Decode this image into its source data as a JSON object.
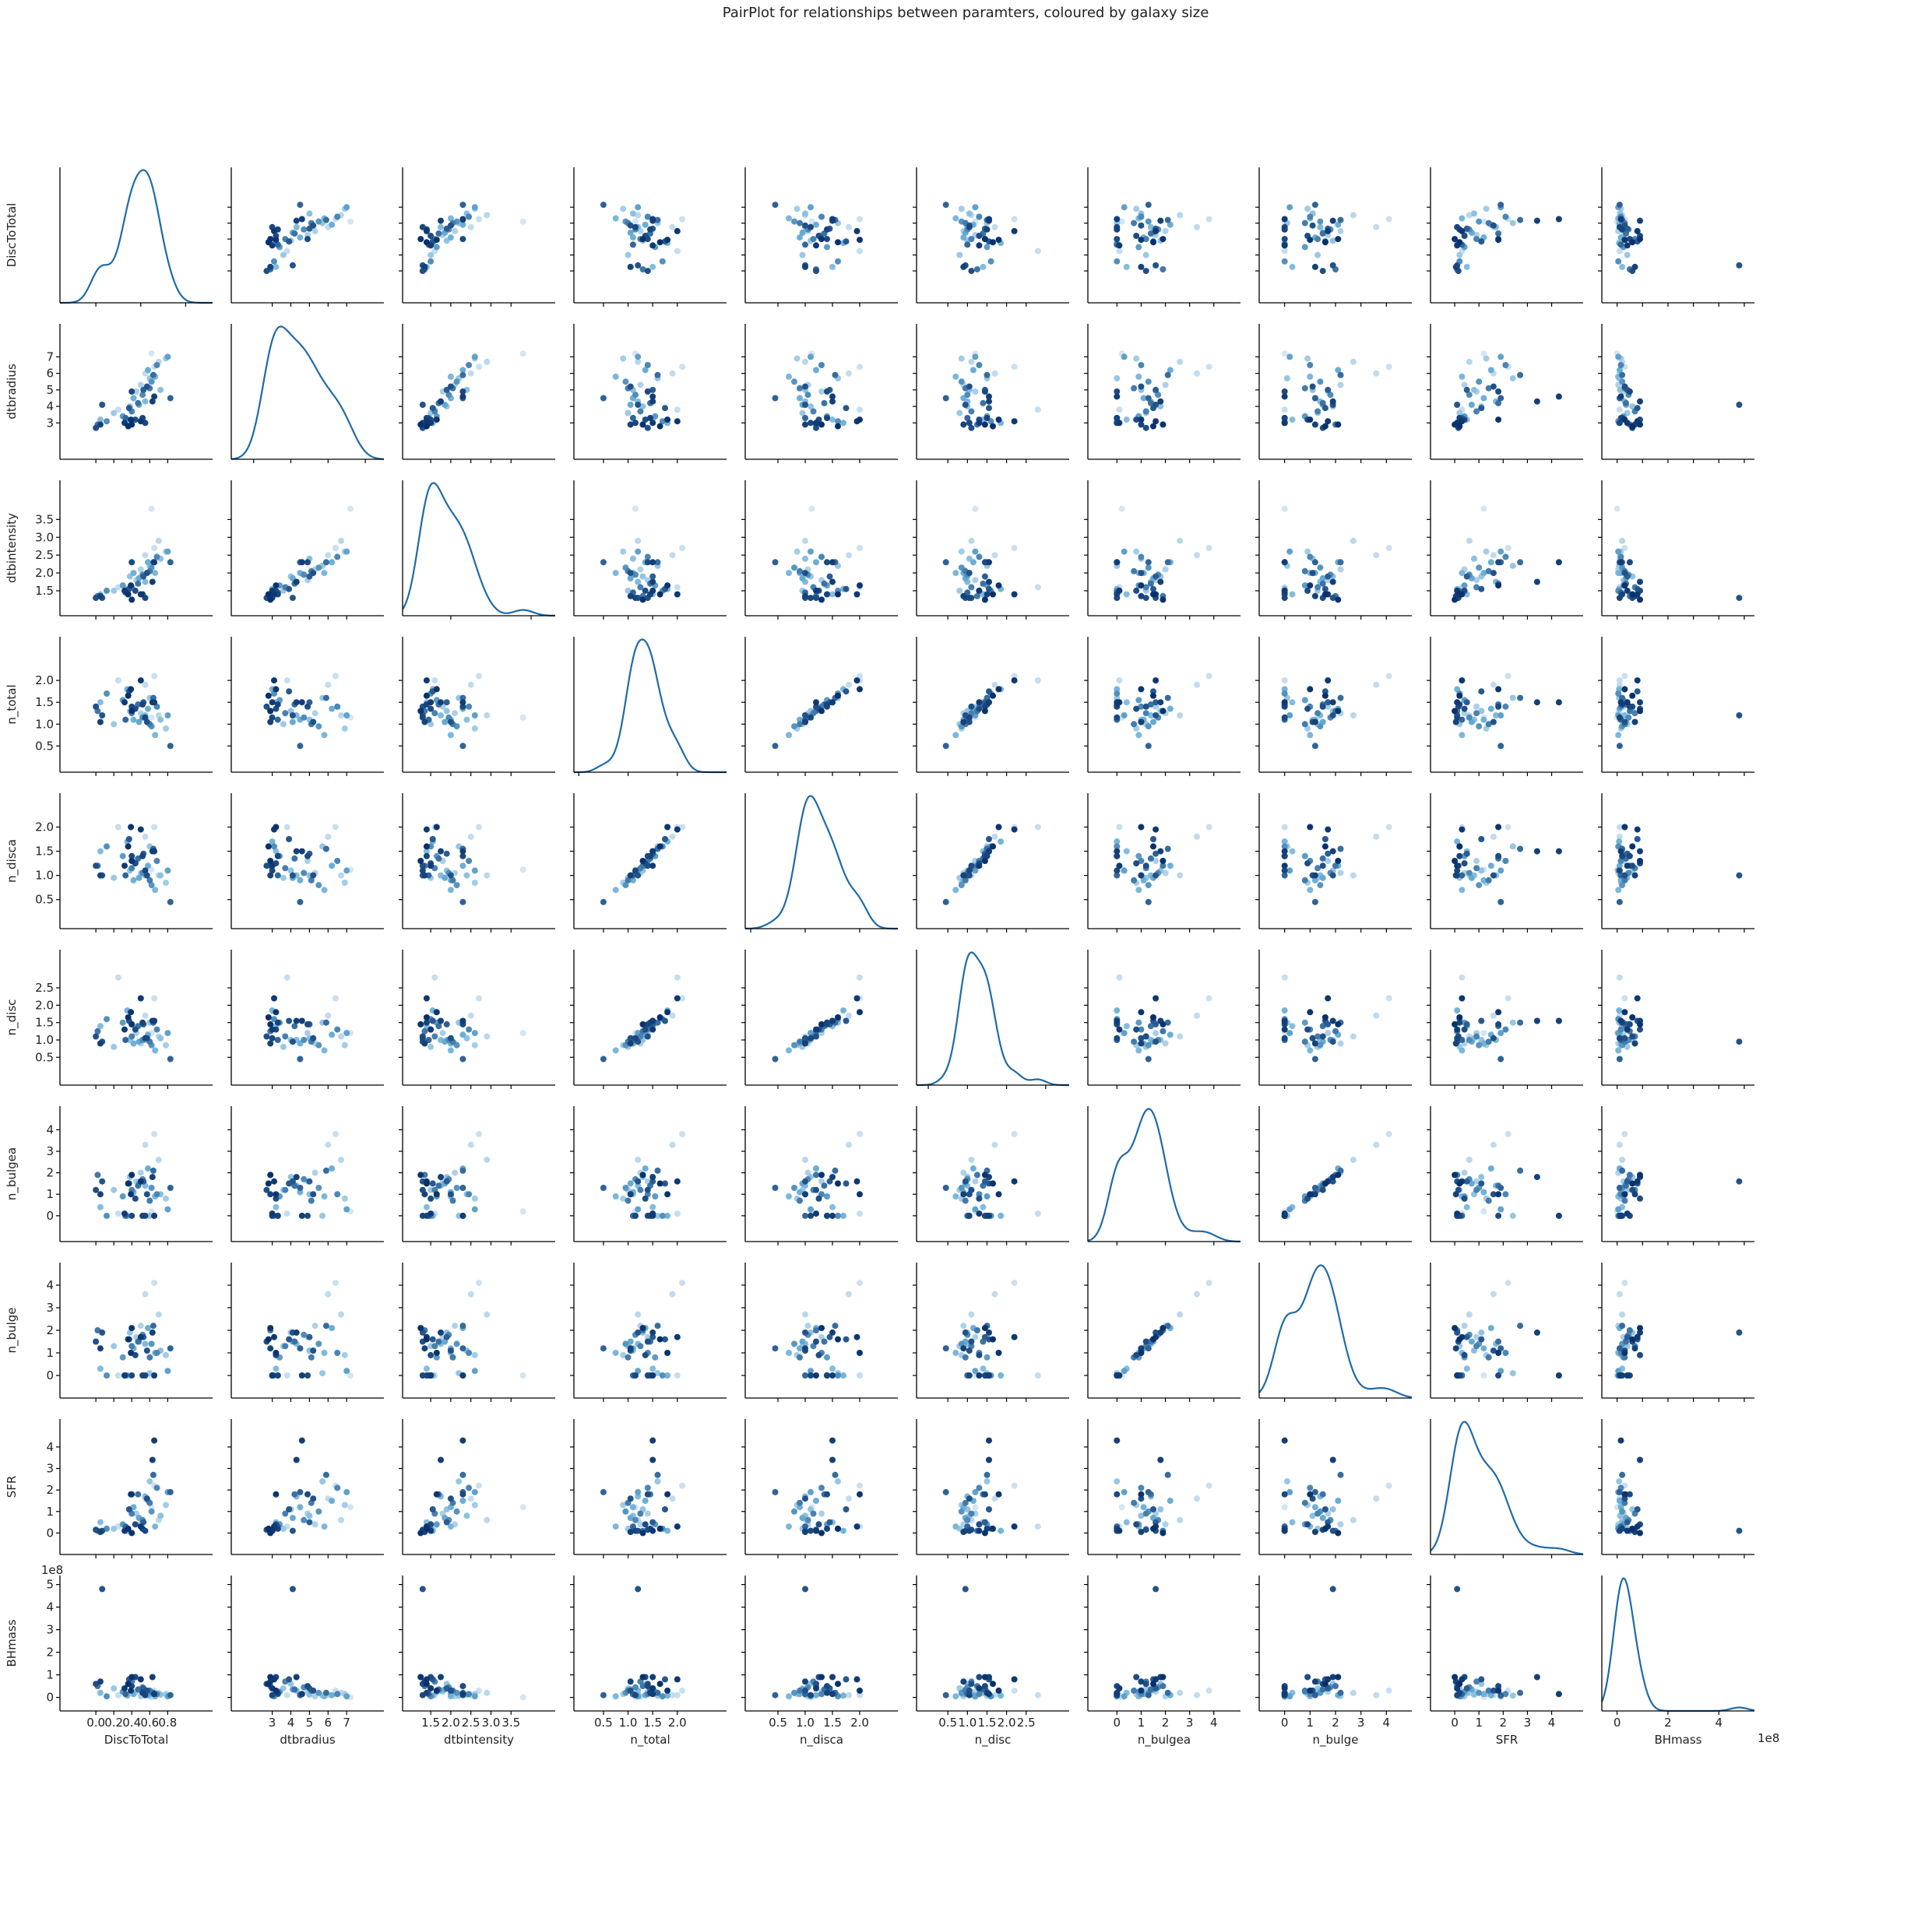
{
  "chart_data": {
    "type": "scatter",
    "title": "PairPlot for relationships between paramters, coloured by galaxy size",
    "variables": [
      "DiscToTotal",
      "dtbradius",
      "dtbintensity",
      "n_total",
      "n_disca",
      "n_disc",
      "n_bulgea",
      "n_bulge",
      "SFR",
      "BHmass"
    ],
    "axes": {
      "DiscToTotal": {
        "lim": [
          -0.4,
          1.3
        ],
        "ticks": [
          0.0,
          0.2,
          0.4,
          0.6,
          0.8
        ],
        "tick_labels": [
          "0.0",
          "0.2",
          "0.4",
          "0.6",
          "0.8"
        ],
        "diag_ticks": [
          0.0,
          0.5,
          1.0
        ],
        "diag_tick_labels": [
          "0.0",
          "0.5",
          "1.0"
        ]
      },
      "dtbradius": {
        "lim": [
          0.8,
          9.0
        ],
        "ticks": [
          3,
          4,
          5,
          6,
          7
        ],
        "tick_labels": [
          "3",
          "4",
          "5",
          "6",
          "7"
        ],
        "diag_ticks": [
          2,
          4,
          6,
          8
        ],
        "diag_tick_labels": [
          "2",
          "4",
          "6",
          "8"
        ]
      },
      "dtbintensity": {
        "lim": [
          0.8,
          4.6
        ],
        "ticks": [
          1.5,
          2.0,
          2.5,
          3.0,
          3.5
        ],
        "tick_labels": [
          "1.5",
          "2.0",
          "2.5",
          "3.0",
          "3.5"
        ],
        "diag_ticks": [
          2,
          4
        ],
        "diag_tick_labels": [
          "2",
          "4"
        ]
      },
      "n_total": {
        "lim": [
          -0.1,
          3.0
        ],
        "ticks": [
          0.5,
          1.0,
          1.5,
          2.0
        ],
        "tick_labels": [
          "0.5",
          "1.0",
          "1.5",
          "2.0"
        ],
        "diag_ticks": [
          0,
          1,
          2
        ],
        "diag_tick_labels": [
          "0",
          "1",
          "2"
        ]
      },
      "n_disca": {
        "lim": [
          -0.1,
          2.7
        ],
        "ticks": [
          0.5,
          1.0,
          1.5,
          2.0
        ],
        "tick_labels": [
          "0.5",
          "1.0",
          "1.5",
          "2.0"
        ],
        "diag_ticks": [
          0,
          1,
          2
        ],
        "diag_tick_labels": [
          "0",
          "1",
          "2"
        ]
      },
      "n_disc": {
        "lim": [
          -0.3,
          3.6
        ],
        "ticks": [
          0.5,
          1.0,
          1.5,
          2.0,
          2.5
        ],
        "tick_labels": [
          "0.5",
          "1.0",
          "1.5",
          "2.0",
          "2.5"
        ],
        "diag_ticks": [
          0,
          1,
          2,
          3
        ],
        "diag_tick_labels": [
          "0",
          "1",
          "2",
          "3"
        ]
      },
      "n_bulgea": {
        "lim": [
          -1.2,
          5.1
        ],
        "ticks": [
          0,
          1,
          2,
          3,
          4
        ],
        "tick_labels": [
          "0",
          "1",
          "2",
          "3",
          "4"
        ],
        "diag_ticks": [
          0,
          2,
          4
        ],
        "diag_tick_labels": [
          "0",
          "2",
          "4"
        ]
      },
      "n_bulge": {
        "lim": [
          -1.0,
          5.0
        ],
        "ticks": [
          0,
          1,
          2,
          3,
          4
        ],
        "tick_labels": [
          "0",
          "1",
          "2",
          "3",
          "4"
        ],
        "diag_ticks": [
          0,
          2,
          4
        ],
        "diag_tick_labels": [
          "0",
          "2",
          "4"
        ]
      },
      "SFR": {
        "lim": [
          -1.0,
          5.3
        ],
        "ticks": [
          0,
          1,
          2,
          3,
          4
        ],
        "tick_labels": [
          "0",
          "1",
          "2",
          "3",
          "4"
        ],
        "diag_ticks": [
          0,
          2,
          4
        ],
        "diag_tick_labels": [
          "0",
          "2",
          "4"
        ]
      },
      "BHmass": {
        "lim": [
          -60000000,
          540000000
        ],
        "ticks": [
          0,
          100000000,
          200000000,
          300000000,
          400000000,
          500000000
        ],
        "tick_labels": [
          "0",
          "1",
          "2",
          "3",
          "4",
          "5"
        ],
        "diag_ticks": [
          0,
          200000000,
          400000000
        ],
        "diag_tick_labels": [
          "0",
          "2",
          "4"
        ],
        "offset_label": "1e8"
      }
    },
    "galaxies": [
      {
        "DiscToTotal": 0.62,
        "dtbradius": 7.2,
        "dtbintensity": 3.8,
        "n_total": 1.15,
        "n_disca": 1.12,
        "n_disc": 1.2,
        "n_bulgea": 0.2,
        "n_bulge": 0.0,
        "SFR": 1.2,
        "BHmass": 0,
        "size": 0.03
      },
      {
        "DiscToTotal": 0.65,
        "dtbradius": 6.4,
        "dtbintensity": 2.7,
        "n_total": 2.1,
        "n_disca": 2.0,
        "n_disc": 2.2,
        "n_bulgea": 3.8,
        "n_bulge": 4.1,
        "SFR": 2.2,
        "BHmass": 30000000,
        "size": 0.08
      },
      {
        "DiscToTotal": 0.55,
        "dtbradius": 6.0,
        "dtbintensity": 2.5,
        "n_total": 1.9,
        "n_disca": 1.8,
        "n_disc": 1.7,
        "n_bulgea": 3.3,
        "n_bulge": 3.6,
        "SFR": 1.6,
        "BHmass": 10000000,
        "size": 0.12
      },
      {
        "DiscToTotal": 0.7,
        "dtbradius": 6.7,
        "dtbintensity": 2.9,
        "n_total": 1.2,
        "n_disca": 1.0,
        "n_disc": 1.1,
        "n_bulgea": 2.6,
        "n_bulge": 2.7,
        "SFR": 0.6,
        "BHmass": 20000000,
        "size": 0.15
      },
      {
        "DiscToTotal": 0.25,
        "dtbradius": 3.8,
        "dtbintensity": 1.6,
        "n_total": 2.0,
        "n_disca": 2.0,
        "n_disc": 2.8,
        "n_bulgea": 0.1,
        "n_bulge": 0.0,
        "SFR": 0.3,
        "BHmass": 10000000,
        "size": 0.1
      },
      {
        "DiscToTotal": 0.5,
        "dtbradius": 5.3,
        "dtbintensity": 2.1,
        "n_total": 1.25,
        "n_disca": 1.05,
        "n_disc": 0.9,
        "n_bulgea": 2.0,
        "n_bulge": 2.2,
        "SFR": 0.4,
        "BHmass": 5000000,
        "size": 0.2
      },
      {
        "DiscToTotal": 0.45,
        "dtbradius": 4.9,
        "dtbintensity": 1.8,
        "n_total": 1.4,
        "n_disca": 1.3,
        "n_disc": 1.2,
        "n_bulgea": 1.6,
        "n_bulge": 1.7,
        "SFR": 0.9,
        "BHmass": 25000000,
        "size": 0.22
      },
      {
        "DiscToTotal": 0.78,
        "dtbradius": 6.9,
        "dtbintensity": 2.6,
        "n_total": 0.9,
        "n_disca": 0.85,
        "n_disc": 0.85,
        "n_bulgea": 0.8,
        "n_bulge": 0.9,
        "SFR": 1.3,
        "BHmass": 15000000,
        "size": 0.25
      },
      {
        "DiscToTotal": 0.2,
        "dtbradius": 3.6,
        "dtbintensity": 1.5,
        "n_total": 1.0,
        "n_disca": 0.95,
        "n_disc": 0.8,
        "n_bulgea": 1.2,
        "n_bulge": 1.3,
        "SFR": 0.2,
        "BHmass": 40000000,
        "size": 0.28
      },
      {
        "DiscToTotal": 0.6,
        "dtbradius": 5.7,
        "dtbintensity": 2.2,
        "n_total": 1.6,
        "n_disca": 1.6,
        "n_disc": 1.5,
        "n_bulgea": 0.0,
        "n_bulge": 0.1,
        "SFR": 2.4,
        "BHmass": 8000000,
        "size": 0.3
      },
      {
        "DiscToTotal": 0.38,
        "dtbradius": 4.0,
        "dtbintensity": 1.9,
        "n_total": 1.3,
        "n_disca": 1.1,
        "n_disc": 1.0,
        "n_bulgea": 1.8,
        "n_bulge": 1.9,
        "SFR": 1.1,
        "BHmass": 60000000,
        "size": 0.32
      },
      {
        "DiscToTotal": 0.72,
        "dtbradius": 5.0,
        "dtbintensity": 2.4,
        "n_total": 1.1,
        "n_disca": 1.0,
        "n_disc": 1.05,
        "n_bulgea": 1.0,
        "n_bulge": 1.1,
        "SFR": 0.8,
        "BHmass": 12000000,
        "size": 0.35
      },
      {
        "DiscToTotal": 0.05,
        "dtbradius": 3.2,
        "dtbintensity": 1.4,
        "n_total": 1.5,
        "n_disca": 1.5,
        "n_disc": 1.4,
        "n_bulgea": 0.4,
        "n_bulge": 0.3,
        "SFR": 0.5,
        "BHmass": 20000000,
        "size": 0.38
      },
      {
        "DiscToTotal": 0.55,
        "dtbradius": 4.3,
        "dtbintensity": 1.75,
        "n_total": 1.2,
        "n_disca": 1.0,
        "n_disc": 1.0,
        "n_bulgea": 1.4,
        "n_bulge": 1.4,
        "SFR": 1.7,
        "BHmass": 30000000,
        "size": 0.4
      },
      {
        "DiscToTotal": 0.66,
        "dtbradius": 5.8,
        "dtbintensity": 2.0,
        "n_total": 0.75,
        "n_disca": 0.7,
        "n_disc": 0.7,
        "n_bulgea": 0.9,
        "n_bulge": 1.0,
        "SFR": 0.3,
        "BHmass": 5000000,
        "size": 0.42
      },
      {
        "DiscToTotal": 0.35,
        "dtbradius": 3.0,
        "dtbintensity": 1.55,
        "n_total": 1.8,
        "n_disca": 1.7,
        "n_disc": 1.85,
        "n_bulgea": 0.0,
        "n_bulge": 0.0,
        "SFR": 0.1,
        "BHmass": 8000000,
        "size": 0.45
      },
      {
        "DiscToTotal": 0.42,
        "dtbradius": 4.5,
        "dtbintensity": 2.0,
        "n_total": 1.1,
        "n_disca": 0.9,
        "n_disc": 0.9,
        "n_bulgea": 1.1,
        "n_bulge": 1.2,
        "SFR": 1.2,
        "BHmass": 15000000,
        "size": 0.48
      },
      {
        "DiscToTotal": 0.58,
        "dtbradius": 6.2,
        "dtbintensity": 2.3,
        "n_total": 1.35,
        "n_disca": 1.2,
        "n_disc": 1.15,
        "n_bulgea": 2.2,
        "n_bulge": 2.1,
        "SFR": 1.5,
        "BHmass": 10000000,
        "size": 0.5
      },
      {
        "DiscToTotal": 0.48,
        "dtbradius": 4.1,
        "dtbintensity": 1.85,
        "n_total": 1.05,
        "n_disca": 0.95,
        "n_disc": 0.95,
        "n_bulgea": 1.5,
        "n_bulge": 1.5,
        "SFR": 0.7,
        "BHmass": 35000000,
        "size": 0.52
      },
      {
        "DiscToTotal": 0.8,
        "dtbradius": 7.0,
        "dtbintensity": 2.6,
        "n_total": 1.2,
        "n_disca": 1.1,
        "n_disc": 1.2,
        "n_bulgea": 0.3,
        "n_bulge": 0.2,
        "SFR": 1.9,
        "BHmass": 5000000,
        "size": 0.55
      },
      {
        "DiscToTotal": 0.3,
        "dtbradius": 3.4,
        "dtbintensity": 1.65,
        "n_total": 1.55,
        "n_disca": 1.4,
        "n_disc": 1.5,
        "n_bulgea": 0.9,
        "n_bulge": 0.8,
        "SFR": 0.4,
        "BHmass": 25000000,
        "size": 0.57
      },
      {
        "DiscToTotal": 0.62,
        "dtbradius": 5.5,
        "dtbintensity": 2.15,
        "n_total": 0.95,
        "n_disca": 0.8,
        "n_disc": 0.85,
        "n_bulgea": 1.3,
        "n_bulge": 1.4,
        "SFR": 1.0,
        "BHmass": 20000000,
        "size": 0.6
      },
      {
        "DiscToTotal": 0.12,
        "dtbradius": 3.1,
        "dtbintensity": 1.5,
        "n_total": 1.7,
        "n_disca": 1.6,
        "n_disc": 1.6,
        "n_bulgea": 0.0,
        "n_bulge": 0.0,
        "SFR": 0.2,
        "BHmass": 5000000,
        "size": 0.62
      },
      {
        "DiscToTotal": 0.52,
        "dtbradius": 4.7,
        "dtbintensity": 1.95,
        "n_total": 1.15,
        "n_disca": 1.05,
        "n_disc": 1.0,
        "n_bulgea": 1.7,
        "n_bulge": 1.8,
        "SFR": 0.6,
        "BHmass": 45000000,
        "size": 0.64
      },
      {
        "DiscToTotal": 0.68,
        "dtbradius": 6.5,
        "dtbintensity": 2.45,
        "n_total": 1.4,
        "n_disca": 1.3,
        "n_disc": 1.3,
        "n_bulgea": 1.0,
        "n_bulge": 1.0,
        "SFR": 2.1,
        "BHmass": 15000000,
        "size": 0.66
      },
      {
        "DiscToTotal": 0.4,
        "dtbradius": 3.7,
        "dtbintensity": 1.6,
        "n_total": 1.25,
        "n_disca": 1.15,
        "n_disc": 1.1,
        "n_bulgea": 1.2,
        "n_bulge": 1.3,
        "SFR": 0.9,
        "BHmass": 70000000,
        "size": 0.68
      },
      {
        "DiscToTotal": 0.6,
        "dtbradius": 5.1,
        "dtbintensity": 2.05,
        "n_total": 1.0,
        "n_disca": 0.9,
        "n_disc": 0.95,
        "n_bulgea": 0.7,
        "n_bulge": 0.8,
        "SFR": 1.4,
        "BHmass": 30000000,
        "size": 0.7
      },
      {
        "DiscToTotal": 0.02,
        "dtbradius": 2.9,
        "dtbintensity": 1.35,
        "n_total": 1.3,
        "n_disca": 1.2,
        "n_disc": 1.25,
        "n_bulgea": 1.9,
        "n_bulge": 2.0,
        "SFR": 0.1,
        "BHmass": 50000000,
        "size": 0.72
      },
      {
        "DiscToTotal": 0.47,
        "dtbradius": 4.2,
        "dtbintensity": 1.7,
        "n_total": 1.45,
        "n_disca": 1.35,
        "n_disc": 1.4,
        "n_bulgea": 1.4,
        "n_bulge": 1.5,
        "SFR": 1.8,
        "BHmass": 35000000,
        "size": 0.74
      },
      {
        "DiscToTotal": 0.64,
        "dtbradius": 5.9,
        "dtbintensity": 2.3,
        "n_total": 1.6,
        "n_disca": 1.55,
        "n_disc": 1.5,
        "n_bulgea": 2.1,
        "n_bulge": 2.2,
        "SFR": 2.7,
        "BHmass": 20000000,
        "size": 0.76
      },
      {
        "DiscToTotal": 0.33,
        "dtbradius": 3.3,
        "dtbintensity": 1.45,
        "n_total": 1.1,
        "n_disca": 1.0,
        "n_disc": 1.0,
        "n_bulgea": 0.0,
        "n_bulge": 0.0,
        "SFR": 0.3,
        "BHmass": 15000000,
        "size": 0.78
      },
      {
        "DiscToTotal": 0.83,
        "dtbradius": 4.5,
        "dtbintensity": 2.3,
        "n_total": 0.5,
        "n_disca": 0.45,
        "n_disc": 0.45,
        "n_bulgea": 1.3,
        "n_bulge": 1.2,
        "SFR": 1.9,
        "BHmass": 10000000,
        "size": 0.8
      },
      {
        "DiscToTotal": 0.53,
        "dtbradius": 5.0,
        "dtbintensity": 1.9,
        "n_total": 1.5,
        "n_disca": 1.45,
        "n_disc": 1.45,
        "n_bulgea": 1.6,
        "n_bulge": 1.7,
        "SFR": 0.5,
        "BHmass": 40000000,
        "size": 0.82
      },
      {
        "DiscToTotal": 0.37,
        "dtbradius": 3.9,
        "dtbintensity": 1.55,
        "n_total": 1.75,
        "n_disca": 1.75,
        "n_disc": 1.55,
        "n_bulgea": 1.5,
        "n_bulge": 1.6,
        "SFR": 1.1,
        "BHmass": 80000000,
        "size": 0.84
      },
      {
        "DiscToTotal": 0.07,
        "dtbradius": 4.1,
        "dtbintensity": 1.3,
        "n_total": 1.2,
        "n_disca": 1.0,
        "n_disc": 0.95,
        "n_bulgea": 1.6,
        "n_bulge": 1.9,
        "SFR": 0.1,
        "BHmass": 480000000,
        "size": 0.86
      },
      {
        "DiscToTotal": 0.57,
        "dtbradius": 5.2,
        "dtbintensity": 2.0,
        "n_total": 1.05,
        "n_disca": 1.0,
        "n_disc": 1.05,
        "n_bulgea": 1.0,
        "n_bulge": 1.1,
        "SFR": 1.6,
        "BHmass": 30000000,
        "size": 0.87
      },
      {
        "DiscToTotal": 0.0,
        "dtbradius": 2.7,
        "dtbintensity": 1.3,
        "n_total": 1.4,
        "n_disca": 1.2,
        "n_disc": 1.1,
        "n_bulgea": 1.2,
        "n_bulge": 1.5,
        "SFR": 0.15,
        "BHmass": 60000000,
        "size": 0.88
      },
      {
        "DiscToTotal": 0.44,
        "dtbradius": 3.2,
        "dtbintensity": 1.5,
        "n_total": 1.35,
        "n_disca": 1.25,
        "n_disc": 1.3,
        "n_bulgea": 0.8,
        "n_bulge": 0.9,
        "SFR": 0.4,
        "BHmass": 90000000,
        "size": 0.89
      },
      {
        "DiscToTotal": 0.4,
        "dtbradius": 4.9,
        "dtbintensity": 2.3,
        "n_total": 1.4,
        "n_disca": 1.4,
        "n_disc": 1.45,
        "n_bulgea": 0.0,
        "n_bulge": 0.0,
        "SFR": 1.8,
        "BHmass": 50000000,
        "size": 0.9
      },
      {
        "DiscToTotal": 0.55,
        "dtbradius": 3.0,
        "dtbintensity": 1.3,
        "n_total": 1.15,
        "n_disca": 1.1,
        "n_disc": 1.05,
        "n_bulgea": 0.0,
        "n_bulge": 0.0,
        "SFR": 0.1,
        "BHmass": 10000000,
        "size": 0.91
      },
      {
        "DiscToTotal": 0.52,
        "dtbradius": 3.3,
        "dtbintensity": 1.4,
        "n_total": 1.45,
        "n_disca": 1.4,
        "n_disc": 1.5,
        "n_bulgea": 0.0,
        "n_bulge": 0.0,
        "SFR": 0.2,
        "BHmass": 20000000,
        "size": 0.92
      },
      {
        "DiscToTotal": 0.05,
        "dtbradius": 2.9,
        "dtbintensity": 1.35,
        "n_total": 1.05,
        "n_disca": 1.0,
        "n_disc": 0.9,
        "n_bulgea": 1.0,
        "n_bulge": 1.2,
        "SFR": 0.05,
        "BHmass": 70000000,
        "size": 0.93
      },
      {
        "DiscToTotal": 0.63,
        "dtbradius": 4.3,
        "dtbintensity": 1.75,
        "n_total": 1.5,
        "n_disca": 1.5,
        "n_disc": 1.55,
        "n_bulgea": 1.8,
        "n_bulge": 1.9,
        "SFR": 3.4,
        "BHmass": 90000000,
        "size": 0.94
      },
      {
        "DiscToTotal": 0.65,
        "dtbradius": 4.6,
        "dtbintensity": 2.3,
        "n_total": 1.5,
        "n_disca": 1.5,
        "n_disc": 1.55,
        "n_bulgea": 0.0,
        "n_bulge": 0.0,
        "SFR": 4.3,
        "BHmass": 15000000,
        "size": 0.95
      },
      {
        "DiscToTotal": 0.32,
        "dtbradius": 3.0,
        "dtbintensity": 1.5,
        "n_total": 1.5,
        "n_disca": 1.2,
        "n_disc": 1.3,
        "n_bulgea": 0.1,
        "n_bulge": 0.0,
        "SFR": 0.1,
        "BHmass": 40000000,
        "size": 0.96
      },
      {
        "DiscToTotal": 0.5,
        "dtbradius": 3.1,
        "dtbintensity": 1.4,
        "n_total": 2.0,
        "n_disca": 1.95,
        "n_disc": 2.2,
        "n_bulgea": 1.6,
        "n_bulge": 1.7,
        "SFR": 0.3,
        "BHmass": 80000000,
        "size": 0.97
      },
      {
        "DiscToTotal": 0.39,
        "dtbradius": 3.2,
        "dtbintensity": 1.65,
        "n_total": 1.8,
        "n_disca": 2.0,
        "n_disc": 1.8,
        "n_bulgea": 1.0,
        "n_bulge": 1.0,
        "SFR": 1.8,
        "BHmass": 30000000,
        "size": 0.98
      },
      {
        "DiscToTotal": 0.4,
        "dtbradius": 2.9,
        "dtbintensity": 1.25,
        "n_total": 1.3,
        "n_disca": 1.3,
        "n_disc": 1.45,
        "n_bulgea": 1.9,
        "n_bulge": 2.1,
        "SFR": 0.0,
        "BHmass": 90000000,
        "size": 0.99
      },
      {
        "DiscToTotal": 0.36,
        "dtbradius": 2.8,
        "dtbintensity": 1.4,
        "n_total": 1.65,
        "n_disca": 1.6,
        "n_disc": 1.65,
        "n_bulgea": 1.5,
        "n_bulge": 1.6,
        "SFR": 0.2,
        "BHmass": 60000000,
        "size": 1.0
      }
    ],
    "color_map": {
      "low": "#dbe9f6",
      "mid": "#6aaed6",
      "high": "#08306b"
    },
    "kde_color": "#1f6aa8",
    "grid": false,
    "legend": "none"
  }
}
